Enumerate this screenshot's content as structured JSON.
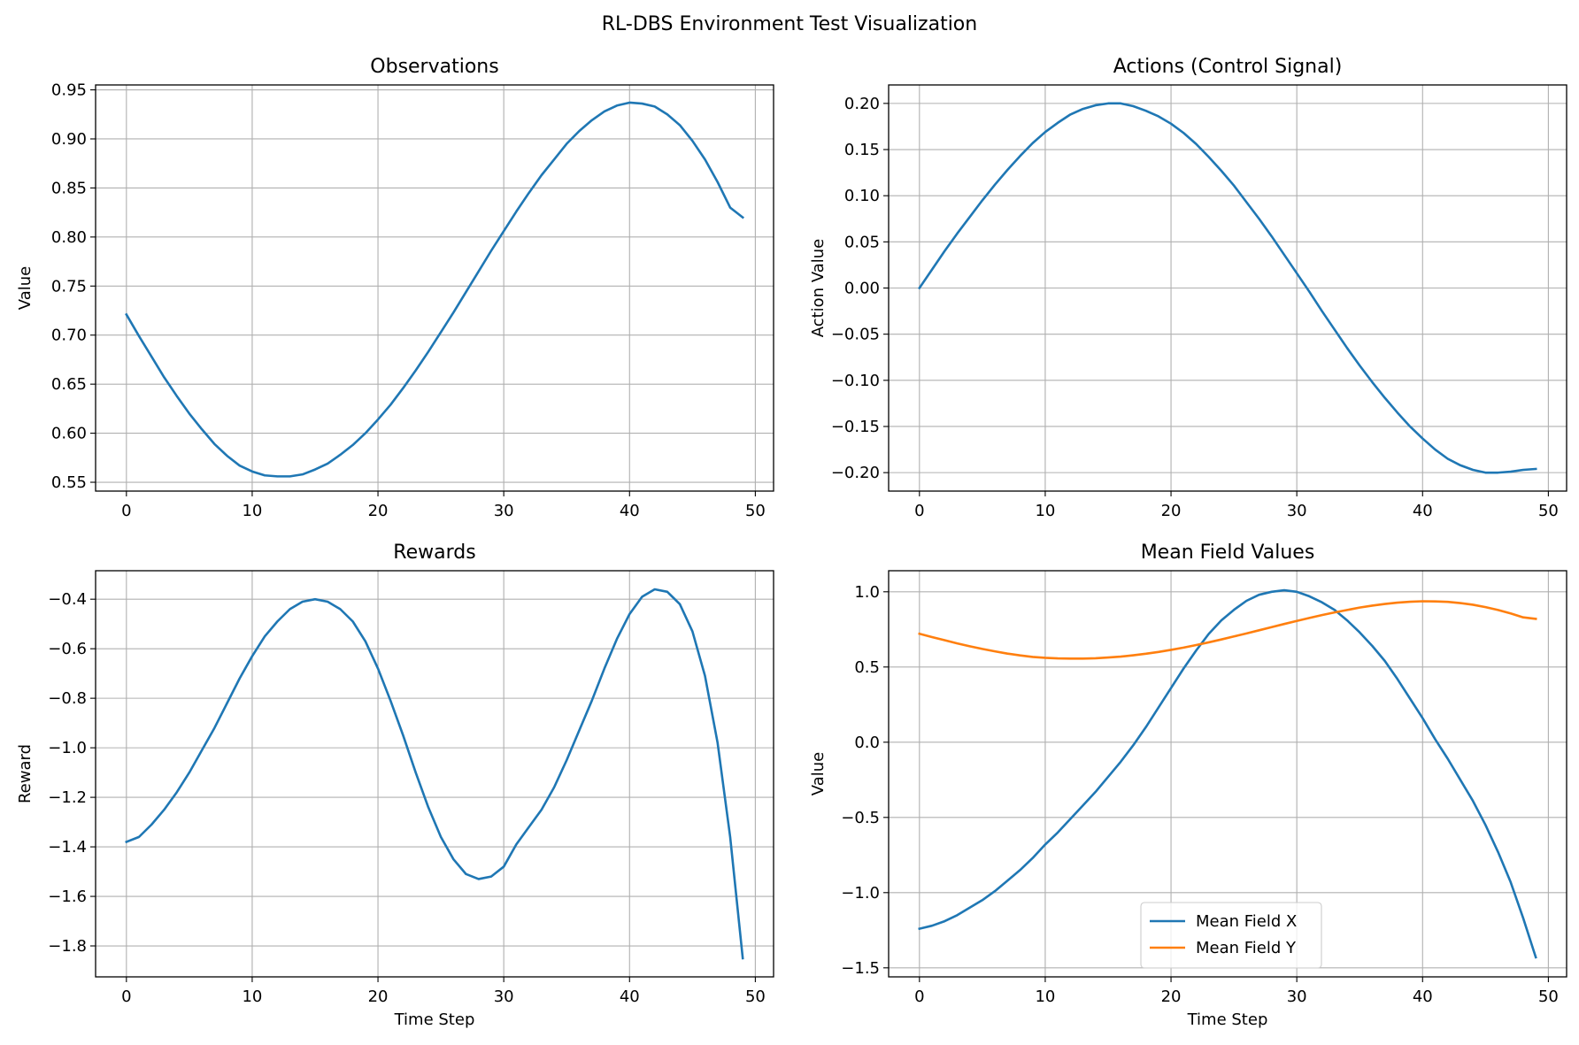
{
  "figure": {
    "title": "RL-DBS Environment Test Visualization"
  },
  "chart_data": [
    {
      "type": "line",
      "title": "Observations",
      "xlabel": "",
      "ylabel": "Value",
      "xlim": [
        -2.45,
        51.45
      ],
      "ylim": [
        0.541,
        0.955
      ],
      "xticks": [
        0,
        10,
        20,
        30,
        40,
        50
      ],
      "xtick_labels": [
        "0",
        "10",
        "20",
        "30",
        "40",
        "50"
      ],
      "yticks": [
        0.55,
        0.6,
        0.65,
        0.7,
        0.75,
        0.8,
        0.85,
        0.9,
        0.95
      ],
      "ytick_labels": [
        "0.55",
        "0.60",
        "0.65",
        "0.70",
        "0.75",
        "0.80",
        "0.85",
        "0.90",
        "0.95"
      ],
      "grid": true,
      "series": [
        {
          "color": "#1f77b4",
          "x": [
            0,
            1,
            2,
            3,
            4,
            5,
            6,
            7,
            8,
            9,
            10,
            11,
            12,
            13,
            14,
            15,
            16,
            17,
            18,
            19,
            20,
            21,
            22,
            23,
            24,
            25,
            26,
            27,
            28,
            29,
            30,
            31,
            32,
            33,
            34,
            35,
            36,
            37,
            38,
            39,
            40,
            41,
            42,
            43,
            44,
            45,
            46,
            47,
            48,
            49
          ],
          "y": [
            0.721,
            0.699,
            0.678,
            0.657,
            0.638,
            0.62,
            0.604,
            0.589,
            0.577,
            0.567,
            0.561,
            0.557,
            0.556,
            0.556,
            0.558,
            0.563,
            0.569,
            0.578,
            0.588,
            0.6,
            0.614,
            0.629,
            0.646,
            0.664,
            0.683,
            0.703,
            0.723,
            0.744,
            0.765,
            0.786,
            0.806,
            0.826,
            0.845,
            0.863,
            0.879,
            0.895,
            0.908,
            0.919,
            0.928,
            0.934,
            0.937,
            0.936,
            0.933,
            0.925,
            0.914,
            0.898,
            0.879,
            0.856,
            0.83,
            0.82
          ]
        }
      ]
    },
    {
      "type": "line",
      "title": "Actions (Control Signal)",
      "xlabel": "",
      "ylabel": "Action Value",
      "xlim": [
        -2.45,
        51.45
      ],
      "ylim": [
        -0.22,
        0.22
      ],
      "xticks": [
        0,
        10,
        20,
        30,
        40,
        50
      ],
      "xtick_labels": [
        "0",
        "10",
        "20",
        "30",
        "40",
        "50"
      ],
      "yticks": [
        -0.2,
        -0.15,
        -0.1,
        -0.05,
        0.0,
        0.05,
        0.1,
        0.15,
        0.2
      ],
      "ytick_labels": [
        "−0.20",
        "−0.15",
        "−0.10",
        "−0.05",
        "0.00",
        "0.05",
        "0.10",
        "0.15",
        "0.20"
      ],
      "grid": true,
      "series": [
        {
          "color": "#1f77b4",
          "x": [
            0,
            1,
            2,
            3,
            4,
            5,
            6,
            7,
            8,
            9,
            10,
            11,
            12,
            13,
            14,
            15,
            16,
            17,
            18,
            19,
            20,
            21,
            22,
            23,
            24,
            25,
            26,
            27,
            28,
            29,
            30,
            31,
            32,
            33,
            34,
            35,
            36,
            37,
            38,
            39,
            40,
            41,
            42,
            43,
            44,
            45,
            46,
            47,
            48,
            49
          ],
          "y": [
            0.0,
            0.02,
            0.04,
            0.059,
            0.077,
            0.095,
            0.112,
            0.128,
            0.143,
            0.157,
            0.169,
            0.179,
            0.188,
            0.194,
            0.198,
            0.2,
            0.2,
            0.197,
            0.192,
            0.186,
            0.178,
            0.168,
            0.156,
            0.142,
            0.127,
            0.111,
            0.093,
            0.075,
            0.056,
            0.036,
            0.016,
            -0.004,
            -0.025,
            -0.045,
            -0.065,
            -0.084,
            -0.102,
            -0.119,
            -0.135,
            -0.15,
            -0.163,
            -0.175,
            -0.185,
            -0.192,
            -0.197,
            -0.2,
            -0.2,
            -0.199,
            -0.197,
            -0.196
          ]
        }
      ]
    },
    {
      "type": "line",
      "title": "Rewards",
      "xlabel": "Time Step",
      "ylabel": "Reward",
      "xlim": [
        -2.45,
        51.45
      ],
      "ylim": [
        -1.925,
        -0.285
      ],
      "xticks": [
        0,
        10,
        20,
        30,
        40,
        50
      ],
      "xtick_labels": [
        "0",
        "10",
        "20",
        "30",
        "40",
        "50"
      ],
      "yticks": [
        -1.8,
        -1.6,
        -1.4,
        -1.2,
        -1.0,
        -0.8,
        -0.6,
        -0.4
      ],
      "ytick_labels": [
        "−1.8",
        "−1.6",
        "−1.4",
        "−1.2",
        "−1.0",
        "−0.8",
        "−0.6",
        "−0.4"
      ],
      "grid": true,
      "series": [
        {
          "color": "#1f77b4",
          "x": [
            0,
            1,
            2,
            3,
            4,
            5,
            6,
            7,
            8,
            9,
            10,
            11,
            12,
            13,
            14,
            15,
            16,
            17,
            18,
            19,
            20,
            21,
            22,
            23,
            24,
            25,
            26,
            27,
            28,
            29,
            30,
            31,
            32,
            33,
            34,
            35,
            36,
            37,
            38,
            39,
            40,
            41,
            42,
            43,
            44,
            45,
            46,
            47,
            48,
            49
          ],
          "y": [
            -1.38,
            -1.36,
            -1.31,
            -1.25,
            -1.18,
            -1.1,
            -1.01,
            -0.92,
            -0.82,
            -0.72,
            -0.63,
            -0.55,
            -0.49,
            -0.44,
            -0.41,
            -0.4,
            -0.41,
            -0.44,
            -0.49,
            -0.57,
            -0.68,
            -0.81,
            -0.95,
            -1.1,
            -1.24,
            -1.36,
            -1.45,
            -1.51,
            -1.53,
            -1.52,
            -1.48,
            -1.39,
            -1.32,
            -1.25,
            -1.16,
            -1.05,
            -0.93,
            -0.81,
            -0.68,
            -0.56,
            -0.46,
            -0.39,
            -0.36,
            -0.37,
            -0.42,
            -0.53,
            -0.71,
            -0.98,
            -1.36,
            -1.85
          ]
        }
      ]
    },
    {
      "type": "line",
      "title": "Mean Field Values",
      "xlabel": "Time Step",
      "ylabel": "Value",
      "xlim": [
        -2.45,
        51.45
      ],
      "ylim": [
        -1.56,
        1.14
      ],
      "xticks": [
        0,
        10,
        20,
        30,
        40,
        50
      ],
      "xtick_labels": [
        "0",
        "10",
        "20",
        "30",
        "40",
        "50"
      ],
      "yticks": [
        -1.5,
        -1.0,
        -0.5,
        0.0,
        0.5,
        1.0
      ],
      "ytick_labels": [
        "−1.5",
        "−1.0",
        "−0.5",
        "0.0",
        "0.5",
        "1.0"
      ],
      "grid": true,
      "legend": "lower-center",
      "series": [
        {
          "name": "Mean Field X",
          "color": "#1f77b4",
          "x": [
            0,
            1,
            2,
            3,
            4,
            5,
            6,
            7,
            8,
            9,
            10,
            11,
            12,
            13,
            14,
            15,
            16,
            17,
            18,
            19,
            20,
            21,
            22,
            23,
            24,
            25,
            26,
            27,
            28,
            29,
            30,
            31,
            32,
            33,
            34,
            35,
            36,
            37,
            38,
            39,
            40,
            41,
            42,
            43,
            44,
            45,
            46,
            47,
            48,
            49
          ],
          "y": [
            -1.24,
            -1.22,
            -1.19,
            -1.15,
            -1.1,
            -1.05,
            -0.99,
            -0.92,
            -0.85,
            -0.77,
            -0.68,
            -0.6,
            -0.51,
            -0.42,
            -0.33,
            -0.23,
            -0.13,
            -0.02,
            0.1,
            0.23,
            0.36,
            0.49,
            0.61,
            0.72,
            0.81,
            0.88,
            0.94,
            0.98,
            1.0,
            1.01,
            1.0,
            0.97,
            0.93,
            0.88,
            0.81,
            0.73,
            0.64,
            0.54,
            0.42,
            0.29,
            0.16,
            0.02,
            -0.11,
            -0.25,
            -0.39,
            -0.55,
            -0.73,
            -0.93,
            -1.17,
            -1.43
          ]
        },
        {
          "name": "Mean Field Y",
          "color": "#ff7f0e",
          "x": [
            0,
            1,
            2,
            3,
            4,
            5,
            6,
            7,
            8,
            9,
            10,
            11,
            12,
            13,
            14,
            15,
            16,
            17,
            18,
            19,
            20,
            21,
            22,
            23,
            24,
            25,
            26,
            27,
            28,
            29,
            30,
            31,
            32,
            33,
            34,
            35,
            36,
            37,
            38,
            39,
            40,
            41,
            42,
            43,
            44,
            45,
            46,
            47,
            48,
            49
          ],
          "y": [
            0.721,
            0.699,
            0.678,
            0.657,
            0.638,
            0.62,
            0.604,
            0.589,
            0.577,
            0.567,
            0.561,
            0.557,
            0.556,
            0.556,
            0.558,
            0.563,
            0.569,
            0.578,
            0.588,
            0.6,
            0.614,
            0.629,
            0.646,
            0.664,
            0.683,
            0.703,
            0.723,
            0.744,
            0.765,
            0.786,
            0.806,
            0.826,
            0.845,
            0.863,
            0.879,
            0.895,
            0.908,
            0.919,
            0.928,
            0.934,
            0.937,
            0.936,
            0.933,
            0.925,
            0.914,
            0.898,
            0.879,
            0.856,
            0.83,
            0.82
          ]
        }
      ]
    }
  ]
}
